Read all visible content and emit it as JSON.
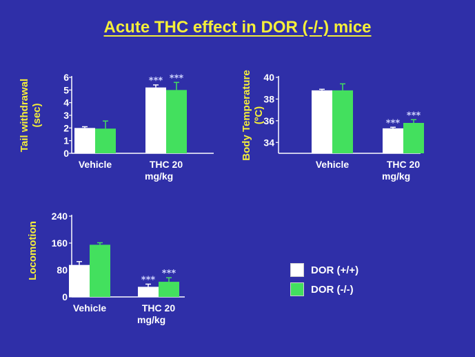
{
  "title": "Acute THC effect in DOR (-/-) mice",
  "colors": {
    "background": "#2f2fa8",
    "title": "#f5ef3a",
    "wildtype": "#ffffff",
    "knockout": "#43e05e",
    "star": "#cfd3ff"
  },
  "legend": {
    "items": [
      {
        "label": "DOR (+/+)",
        "color": "#ffffff"
      },
      {
        "label": "DOR (-/-)",
        "color": "#43e05e"
      }
    ]
  },
  "chart_data": [
    {
      "type": "bar",
      "ylabel_lines": [
        "Tail withdrawal",
        "(sec)"
      ],
      "categories": [
        [
          "Vehicle"
        ],
        [
          "THC 20",
          "mg/kg"
        ]
      ],
      "yticks": [
        "0",
        "1",
        "2",
        "3",
        "4",
        "5",
        "6"
      ],
      "ylim": [
        0,
        6
      ],
      "series": [
        {
          "name": "DOR (+/+)",
          "values": [
            2.0,
            5.2
          ],
          "errors": [
            0.1,
            0.2
          ]
        },
        {
          "name": "DOR (-/-)",
          "values": [
            1.95,
            5.0
          ],
          "errors": [
            0.6,
            0.6
          ]
        }
      ],
      "significance": [
        "",
        "***"
      ]
    },
    {
      "type": "bar",
      "ylabel_lines": [
        "Body Temperature",
        "(ºC)"
      ],
      "categories": [
        [
          "Vehicle"
        ],
        [
          "THC 20",
          "mg/kg"
        ]
      ],
      "yticks": [
        "34",
        "36",
        "38",
        "40"
      ],
      "ylim": [
        33,
        40
      ],
      "series": [
        {
          "name": "DOR (+/+)",
          "values": [
            38.8,
            35.3
          ],
          "errors": [
            0.1,
            0.1
          ]
        },
        {
          "name": "DOR (-/-)",
          "values": [
            38.8,
            35.8
          ],
          "errors": [
            0.6,
            0.3
          ]
        }
      ],
      "significance": [
        "",
        "***"
      ]
    },
    {
      "type": "bar",
      "ylabel_lines": [
        "Locomotion"
      ],
      "categories": [
        [
          "Vehicle"
        ],
        [
          "THC 20",
          "mg/kg"
        ]
      ],
      "yticks": [
        "0",
        "80",
        "160",
        "240"
      ],
      "ylim": [
        0,
        240
      ],
      "series": [
        {
          "name": "DOR (+/+)",
          "values": [
            95,
            30
          ],
          "errors": [
            10,
            8
          ]
        },
        {
          "name": "DOR (-/-)",
          "values": [
            155,
            45
          ],
          "errors": [
            6,
            12
          ]
        }
      ],
      "significance": [
        "",
        "***"
      ]
    }
  ]
}
